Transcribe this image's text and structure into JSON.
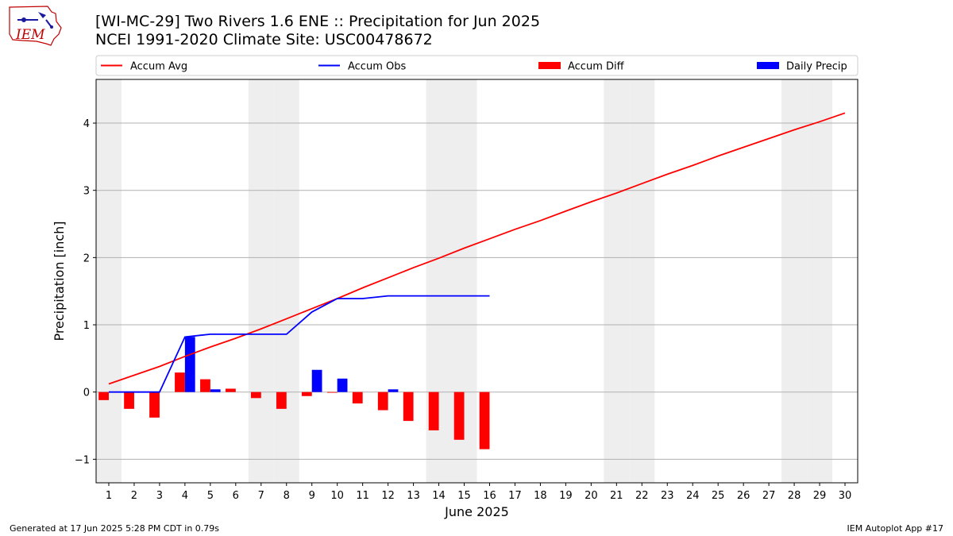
{
  "header": {
    "title_line1": "[WI-MC-29] Two Rivers 1.6 ENE :: Precipitation for Jun 2025",
    "title_line2": "NCEI 1991-2020 Climate Site: USC00478672",
    "logo_text": "IEM"
  },
  "footer": {
    "left": "Generated at 17 Jun 2025 5:28 PM CDT in 0.79s",
    "right": "IEM Autoplot App #17"
  },
  "colors": {
    "accum_avg": "#ff0000",
    "accum_obs": "#0000ff",
    "accum_diff": "#ff0000",
    "daily_precip": "#0000ff",
    "weekend_shade": "#eeeeee",
    "grid": "#b0b0b0"
  },
  "chart_data": {
    "type": "bar+line",
    "xlabel": "June 2025",
    "ylabel": "Precipitation [inch]",
    "xlim": [
      0.5,
      30.5
    ],
    "ylim": [
      -1.35,
      4.65
    ],
    "yticks": [
      -1,
      0,
      1,
      2,
      3,
      4
    ],
    "ytick_labels": [
      "−1",
      "0",
      "1",
      "2",
      "3",
      "4"
    ],
    "days": [
      1,
      2,
      3,
      4,
      5,
      6,
      7,
      8,
      9,
      10,
      11,
      12,
      13,
      14,
      15,
      16,
      17,
      18,
      19,
      20,
      21,
      22,
      23,
      24,
      25,
      26,
      27,
      28,
      29,
      30
    ],
    "weekend_days": [
      1,
      7,
      8,
      14,
      15,
      21,
      22,
      28,
      29
    ],
    "grid": "horizontal",
    "legend_position": "top (above plot, horizontal)",
    "series": [
      {
        "name": "Accum Avg",
        "kind": "line",
        "x": [
          1,
          2,
          3,
          4,
          5,
          6,
          7,
          8,
          9,
          10,
          11,
          12,
          13,
          14,
          15,
          16,
          17,
          18,
          19,
          20,
          21,
          22,
          23,
          24,
          25,
          26,
          27,
          28,
          29,
          30
        ],
        "values": [
          0.12,
          0.25,
          0.38,
          0.53,
          0.67,
          0.8,
          0.94,
          1.09,
          1.24,
          1.39,
          1.55,
          1.7,
          1.85,
          1.99,
          2.14,
          2.28,
          2.42,
          2.55,
          2.69,
          2.83,
          2.96,
          3.1,
          3.24,
          3.37,
          3.51,
          3.64,
          3.77,
          3.9,
          4.02,
          4.15
        ]
      },
      {
        "name": "Accum Obs",
        "kind": "line",
        "x": [
          1,
          2,
          3,
          4,
          5,
          6,
          7,
          8,
          9,
          10,
          11,
          12,
          13,
          14,
          15,
          16
        ],
        "values": [
          0.0,
          0.0,
          0.0,
          0.82,
          0.86,
          0.86,
          0.86,
          0.86,
          1.19,
          1.39,
          1.39,
          1.43,
          1.43,
          1.43,
          1.43,
          1.43
        ]
      },
      {
        "name": "Accum Diff",
        "kind": "bar",
        "x": [
          1,
          2,
          3,
          4,
          5,
          6,
          7,
          8,
          9,
          10,
          11,
          12,
          13,
          14,
          15,
          16
        ],
        "values": [
          -0.12,
          -0.25,
          -0.38,
          0.29,
          0.19,
          0.05,
          -0.09,
          -0.25,
          -0.06,
          -0.01,
          -0.17,
          -0.27,
          -0.43,
          -0.57,
          -0.71,
          -0.85
        ]
      },
      {
        "name": "Daily Precip",
        "kind": "bar",
        "x": [
          1,
          2,
          3,
          4,
          5,
          6,
          7,
          8,
          9,
          10,
          11,
          12,
          13,
          14,
          15,
          16
        ],
        "values": [
          0,
          0,
          0,
          0.82,
          0.04,
          0,
          0,
          0,
          0.33,
          0.2,
          0,
          0.04,
          0,
          0,
          0,
          0
        ]
      }
    ]
  }
}
